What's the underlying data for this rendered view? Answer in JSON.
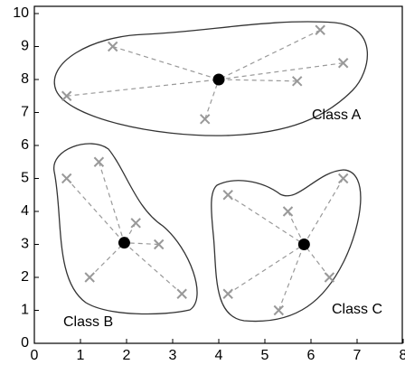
{
  "chart_data": {
    "type": "scatter",
    "xlim": [
      0,
      8
    ],
    "xticks": [
      0,
      1,
      2,
      3,
      4,
      5,
      6,
      7,
      8
    ],
    "ylim": [
      0,
      10
    ],
    "yticks": [
      0,
      1,
      2,
      3,
      4,
      5,
      6,
      7,
      8,
      9,
      10
    ],
    "point_color": "#999999",
    "centroid_color": "#000000",
    "series": [
      {
        "name": "Class A",
        "centroid": [
          4,
          8
        ],
        "x": [
          0.7,
          1.7,
          3.7,
          5.7,
          6.2,
          6.7
        ],
        "y": [
          7.5,
          9,
          6.8,
          7.95,
          9.5,
          8.5
        ]
      },
      {
        "name": "Class B",
        "centroid": [
          1.95,
          3.05
        ],
        "x": [
          0.7,
          1.4,
          2.2,
          2.7,
          1.2,
          3.2
        ],
        "y": [
          5,
          5.5,
          3.65,
          3,
          2,
          1.5
        ]
      },
      {
        "name": "Class C",
        "centroid": [
          5.85,
          3
        ],
        "x": [
          4.2,
          5.5,
          6.7,
          6.4,
          4.2,
          5.3
        ],
        "y": [
          4.5,
          4,
          5,
          2,
          1.5,
          1
        ]
      }
    ]
  }
}
